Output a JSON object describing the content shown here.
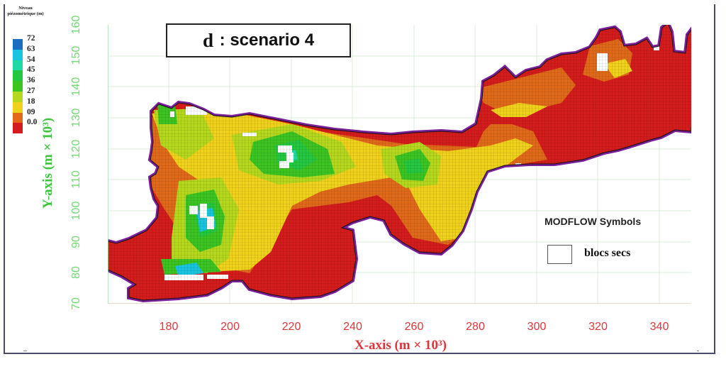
{
  "figure": {
    "title_prefix": "d",
    "title_sep": " : ",
    "title_text": "scenario 4"
  },
  "legend": {
    "title_line1": "Niveau",
    "title_line2": "piézométrique (m)",
    "entries": [
      {
        "label": "72",
        "color": "#1a6ebd"
      },
      {
        "label": "63",
        "color": "#19c4df"
      },
      {
        "label": "54",
        "color": "#20d9a4"
      },
      {
        "label": "45",
        "color": "#25c640"
      },
      {
        "label": "36",
        "color": "#3cc423"
      },
      {
        "label": "27",
        "color": "#b5d81e"
      },
      {
        "label": "18",
        "color": "#f0d21c"
      },
      {
        "label": "09",
        "color": "#e06a1a"
      },
      {
        "label": "0.0",
        "color": "#d41c1c"
      }
    ]
  },
  "axes": {
    "xlabel": "X-axis (m × 10³)",
    "ylabel": "Y-axis (m × 10³)",
    "xticks": [
      "180",
      "200",
      "220",
      "240",
      "260",
      "280",
      "300",
      "320",
      "340"
    ],
    "yticks": [
      "70",
      "80",
      "90",
      "100",
      "110",
      "120",
      "130",
      "140",
      "150",
      "160"
    ]
  },
  "symbols": {
    "title": "MODFLOW Symbols",
    "items": [
      {
        "label": "blocs secs",
        "color": "#ffffff"
      }
    ]
  },
  "chart_data": {
    "type": "heatmap",
    "title": "d : scenario 4",
    "xlabel": "X-axis (m × 10³)",
    "ylabel": "Y-axis (m × 10³)",
    "xlim": [
      160,
      350
    ],
    "ylim": [
      70,
      160
    ],
    "xticks": [
      180,
      200,
      220,
      240,
      260,
      280,
      300,
      320,
      340
    ],
    "yticks": [
      70,
      80,
      90,
      100,
      110,
      120,
      130,
      140,
      150,
      160
    ],
    "grid": true,
    "colorbar": {
      "title": "Niveau piézométrique (m)",
      "levels": [
        0.0,
        9,
        18,
        27,
        36,
        45,
        54,
        63,
        72
      ],
      "colors": [
        "#d41c1c",
        "#e06a1a",
        "#f0d21c",
        "#b5d81e",
        "#3cc423",
        "#25c640",
        "#20d9a4",
        "#19c4df",
        "#1a6ebd"
      ],
      "position": "top-left"
    },
    "legend": [
      {
        "label": "blocs secs",
        "symbol": "white square"
      }
    ],
    "annotations": [
      "MODFLOW Symbols"
    ],
    "features": [
      {
        "description": "High piezometric zone (45–63 m)",
        "x": 190,
        "y": 93
      },
      {
        "description": "Green dome (36–54 m) with dry blocks",
        "x": 218,
        "y": 117
      },
      {
        "description": "Green dome (36–45 m)",
        "x": 262,
        "y": 114
      },
      {
        "description": "Low zone (0–9 m) south-central",
        "x": 235,
        "y": 83
      },
      {
        "description": "Eastern low zone (0–9 m)",
        "x": 320,
        "y": 130
      }
    ]
  }
}
